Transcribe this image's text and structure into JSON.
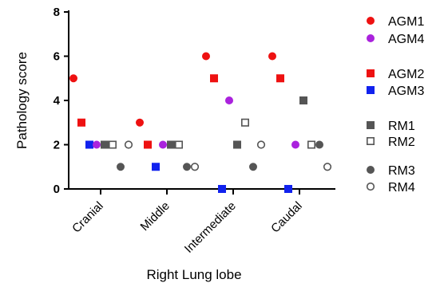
{
  "chart_data": {
    "type": "scatter",
    "xlabel": "Right Lung lobe",
    "ylabel": "Pathology score",
    "categories": [
      "Cranial",
      "Middle",
      "Intermediate",
      "Caudal"
    ],
    "ylim": [
      0,
      8
    ],
    "yticks": [
      0,
      2,
      4,
      6,
      8
    ],
    "grid": false,
    "legend_position": "right",
    "series": [
      {
        "name": "AGM1",
        "marker": "circle-filled",
        "color": "#ee1111",
        "values": [
          5,
          3,
          6,
          6
        ]
      },
      {
        "name": "AGM2",
        "marker": "square-filled",
        "color": "#ee1111",
        "values": [
          3,
          2,
          5,
          5
        ]
      },
      {
        "name": "AGM3",
        "marker": "square-filled",
        "color": "#1122ee",
        "values": [
          2,
          1,
          0,
          0
        ]
      },
      {
        "name": "AGM4",
        "marker": "circle-filled",
        "color": "#aa22dd",
        "values": [
          2,
          2,
          4,
          2
        ]
      },
      {
        "name": "RM1",
        "marker": "square-filled",
        "color": "#555555",
        "values": [
          2,
          2,
          2,
          4
        ]
      },
      {
        "name": "RM2",
        "marker": "square-open",
        "color": "#555555",
        "values": [
          2,
          2,
          3,
          2
        ]
      },
      {
        "name": "RM3",
        "marker": "circle-filled",
        "color": "#555555",
        "values": [
          1,
          1,
          1,
          2
        ]
      },
      {
        "name": "RM4",
        "marker": "circle-open",
        "color": "#555555",
        "values": [
          2,
          1,
          2,
          1
        ]
      }
    ],
    "legend_order": [
      "AGM1",
      "AGM4",
      "AGM2",
      "AGM3",
      "RM1",
      "RM2",
      "RM3",
      "RM4"
    ]
  }
}
